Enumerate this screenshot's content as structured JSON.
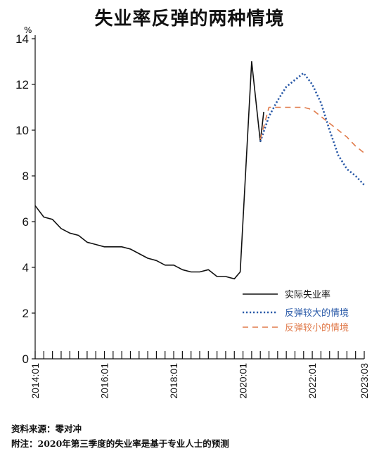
{
  "title": "失业率反弹的两种情境",
  "chart_data": {
    "type": "line",
    "title": "失业率反弹的两种情境",
    "yunit": "%",
    "ylim": [
      0,
      14
    ],
    "yticks": [
      0,
      2,
      4,
      6,
      8,
      10,
      12,
      14
    ],
    "xlim": [
      2014.0,
      2023.5
    ],
    "xticks": [
      {
        "label": "2014:01",
        "x": 2014.0
      },
      {
        "label": "2016:01",
        "x": 2016.0
      },
      {
        "label": "2018:01",
        "x": 2018.0
      },
      {
        "label": "2020:01",
        "x": 2020.0
      },
      {
        "label": "2022:01",
        "x": 2022.0
      },
      {
        "label": "2023:03",
        "x": 2023.5
      }
    ],
    "minor_tick_step": 0.25,
    "legend_position": "lower-right",
    "series": [
      {
        "name": "实际失业率",
        "color": "#111111",
        "style": "solid",
        "points": [
          [
            2014.0,
            6.7
          ],
          [
            2014.25,
            6.2
          ],
          [
            2014.5,
            6.1
          ],
          [
            2014.75,
            5.7
          ],
          [
            2015.0,
            5.5
          ],
          [
            2015.25,
            5.4
          ],
          [
            2015.5,
            5.1
          ],
          [
            2015.75,
            5.0
          ],
          [
            2016.0,
            4.9
          ],
          [
            2016.25,
            4.9
          ],
          [
            2016.5,
            4.9
          ],
          [
            2016.75,
            4.8
          ],
          [
            2017.0,
            4.6
          ],
          [
            2017.25,
            4.4
          ],
          [
            2017.5,
            4.3
          ],
          [
            2017.75,
            4.1
          ],
          [
            2018.0,
            4.1
          ],
          [
            2018.25,
            3.9
          ],
          [
            2018.5,
            3.8
          ],
          [
            2018.75,
            3.8
          ],
          [
            2019.0,
            3.9
          ],
          [
            2019.25,
            3.6
          ],
          [
            2019.5,
            3.6
          ],
          [
            2019.75,
            3.5
          ],
          [
            2019.92,
            3.8
          ],
          [
            2020.25,
            13.0
          ],
          [
            2020.5,
            9.5
          ],
          [
            2020.6,
            10.8
          ]
        ]
      },
      {
        "name": "反弹较大的情境",
        "color": "#2a5aa8",
        "style": "dotted",
        "points": [
          [
            2020.5,
            9.5
          ],
          [
            2020.75,
            10.6
          ],
          [
            2021.0,
            11.3
          ],
          [
            2021.25,
            11.9
          ],
          [
            2021.5,
            12.2
          ],
          [
            2021.75,
            12.5
          ],
          [
            2022.0,
            12.0
          ],
          [
            2022.25,
            11.2
          ],
          [
            2022.5,
            10.0
          ],
          [
            2022.75,
            8.9
          ],
          [
            2023.0,
            8.3
          ],
          [
            2023.25,
            8.0
          ],
          [
            2023.5,
            7.6
          ]
        ]
      },
      {
        "name": "反弹较小的情境",
        "color": "#e07a4a",
        "style": "dashed",
        "points": [
          [
            2020.5,
            9.6
          ],
          [
            2020.75,
            11.0
          ],
          [
            2021.0,
            11.0
          ],
          [
            2021.25,
            11.0
          ],
          [
            2021.5,
            11.0
          ],
          [
            2021.75,
            11.0
          ],
          [
            2022.0,
            10.9
          ],
          [
            2022.25,
            10.6
          ],
          [
            2022.5,
            10.3
          ],
          [
            2022.75,
            10.0
          ],
          [
            2023.0,
            9.7
          ],
          [
            2023.25,
            9.3
          ],
          [
            2023.5,
            9.0
          ]
        ]
      }
    ]
  },
  "source_text": "资料来源：零对冲",
  "note_text": "附注：2020年第三季度的失业率是基于专业人士的预测"
}
